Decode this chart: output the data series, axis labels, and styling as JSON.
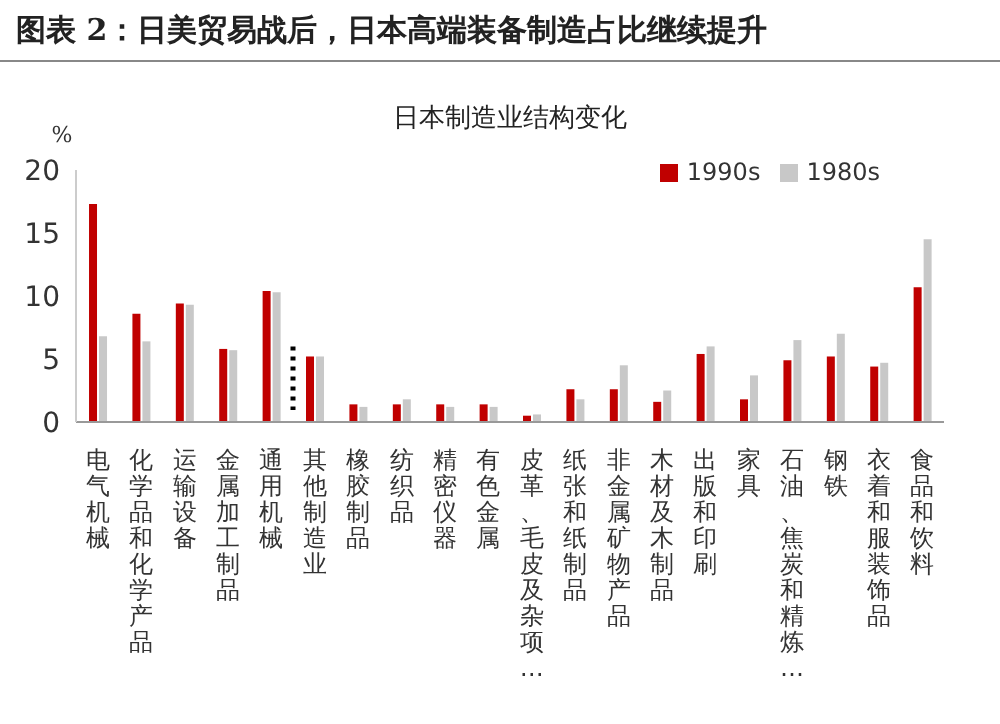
{
  "chart_data": {
    "type": "bar",
    "title": "图表 2：日美贸易战后，日本高端装备制造占比继续提升",
    "subtitle": "日本制造业结构变化",
    "ylabel": "%",
    "categories": [
      "电气机械",
      "化学品和化学产品",
      "运输设备",
      "金属加工制品",
      "通用机械",
      "其他制造业",
      "橡胶制品",
      "纺织品",
      "精密仪器",
      "有色金属",
      "皮革、毛皮及杂项…",
      "纸张和纸制品",
      "非金属矿物产品",
      "木材及木制品",
      "出版和印刷",
      "家具",
      "石油、焦炭和精炼…",
      "钢铁",
      "衣着和服装饰品",
      "食品和饮料"
    ],
    "series": [
      {
        "name": "1990s",
        "color": "#c00000",
        "values": [
          17.3,
          8.6,
          9.4,
          5.8,
          10.4,
          5.2,
          1.4,
          1.4,
          1.4,
          1.4,
          0.5,
          2.6,
          2.6,
          1.6,
          5.4,
          1.8,
          4.9,
          5.2,
          4.4,
          10.7
        ]
      },
      {
        "name": "1980s",
        "color": "#c8c8c8",
        "values": [
          6.8,
          6.4,
          9.3,
          5.7,
          10.3,
          5.2,
          1.2,
          1.8,
          1.2,
          1.2,
          0.6,
          1.8,
          4.5,
          2.5,
          6.0,
          3.7,
          6.5,
          7.0,
          4.7,
          14.5
        ]
      }
    ],
    "ylim": [
      0,
      20
    ],
    "yticks": [
      0,
      5,
      10,
      15,
      20
    ],
    "grid": false,
    "legend": "top right",
    "ref_lines": [
      {
        "axis": "x",
        "value": "其他制造业",
        "line_style": "dotted",
        "color": "#000000"
      }
    ]
  }
}
